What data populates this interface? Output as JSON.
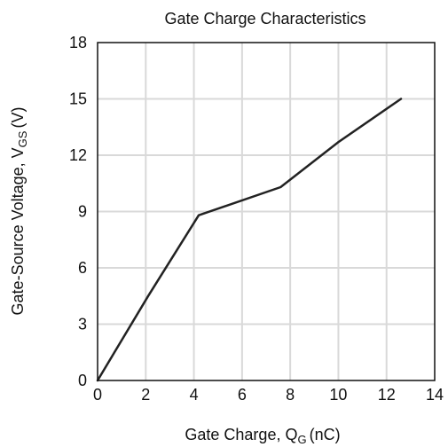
{
  "chart_data": {
    "type": "line",
    "title": "Gate Charge Characteristics",
    "xlabel": {
      "main": "Gate Charge, Q",
      "sub": "G",
      "unit": "(nC)"
    },
    "ylabel": {
      "main": "Gate-Source Voltage, V",
      "sub": "GS",
      "unit": "(V)"
    },
    "xlim": [
      0,
      14
    ],
    "ylim": [
      0,
      18
    ],
    "xticks": [
      0,
      2,
      4,
      6,
      8,
      10,
      12,
      14
    ],
    "yticks": [
      0,
      3,
      6,
      9,
      12,
      15,
      18
    ],
    "grid": true,
    "series": [
      {
        "x": [
          0,
          2.1,
          4.2,
          7.6,
          10,
          12.6
        ],
        "y": [
          0,
          4.5,
          8.8,
          10.3,
          12.7,
          15.0
        ],
        "color": "#222222"
      }
    ]
  }
}
